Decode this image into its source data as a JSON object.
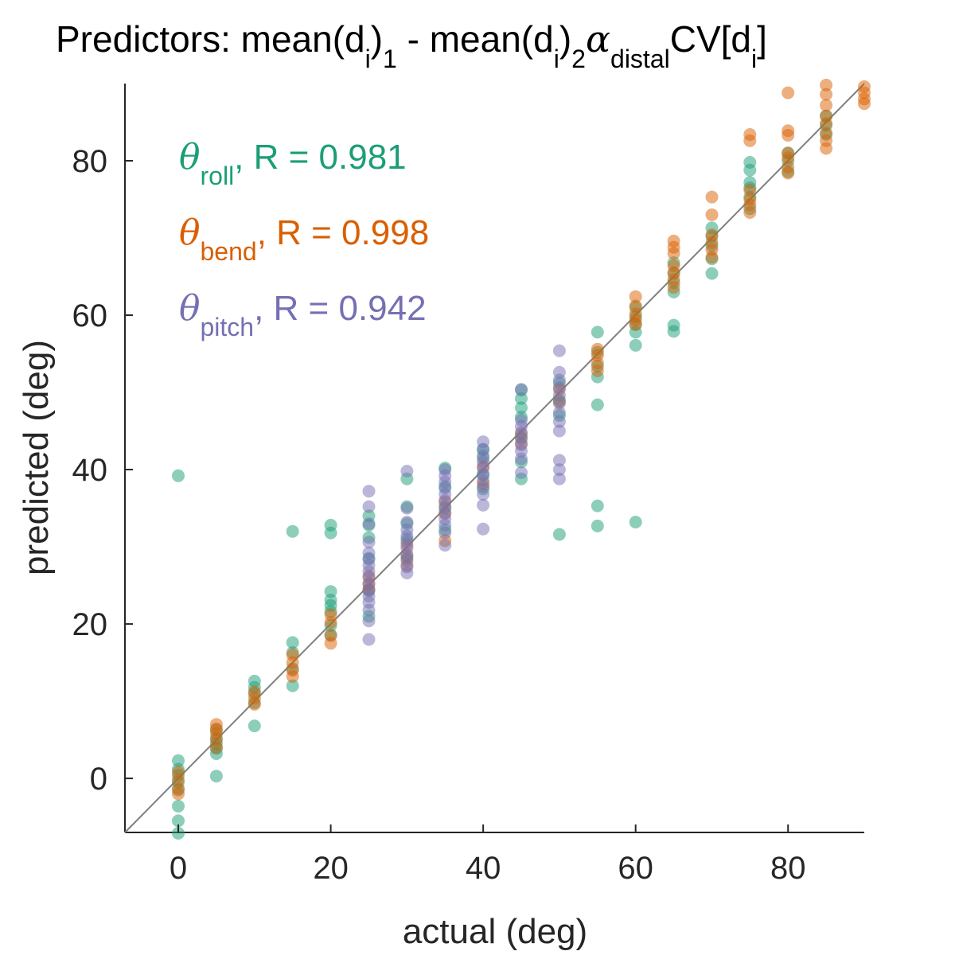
{
  "chart_data": {
    "type": "scatter",
    "title": {
      "prefix": "Predictors: mean(d",
      "sub_i_1": "i",
      "mid1": ")",
      "sub_1": "1",
      "mid2": " - mean(d",
      "sub_i_2": "i",
      "mid3": ")",
      "sub_2": "2",
      "alpha": "α",
      "sub_distal": "distal",
      "mid4": "CV[d",
      "sub_i_3": "i",
      "suffix": "]"
    },
    "xlabel": "actual (deg)",
    "ylabel": "predicted (deg)",
    "xlim": [
      -7,
      90
    ],
    "ylim": [
      -7,
      90
    ],
    "xticks": [
      0,
      20,
      40,
      60,
      80
    ],
    "yticks": [
      0,
      20,
      40,
      60,
      80
    ],
    "identity_line": true,
    "grid": false,
    "legend_placement": "top-left",
    "series": [
      {
        "name": "roll",
        "theta": "θ",
        "r_text": ", R = 0.981",
        "color": "#1b9e77",
        "points": [
          [
            0,
            2.3
          ],
          [
            0,
            1.2
          ],
          [
            0,
            0.4
          ],
          [
            0,
            -0.5
          ],
          [
            0,
            -1.5
          ],
          [
            0,
            -3.6
          ],
          [
            0,
            -5.5
          ],
          [
            0,
            -7.1
          ],
          [
            5,
            0.3
          ],
          [
            5,
            3.2
          ],
          [
            5,
            3.9
          ],
          [
            5,
            4.5
          ],
          [
            5,
            5.2
          ],
          [
            5,
            6.3
          ],
          [
            10,
            6.8
          ],
          [
            10,
            9.8
          ],
          [
            10,
            11.0
          ],
          [
            10,
            11.8
          ],
          [
            10,
            12.6
          ],
          [
            15,
            12.0
          ],
          [
            15,
            14.2
          ],
          [
            15,
            16.3
          ],
          [
            15,
            17.6
          ],
          [
            15,
            32.0
          ],
          [
            20,
            18.6
          ],
          [
            20,
            19.8
          ],
          [
            20,
            21.6
          ],
          [
            20,
            22.4
          ],
          [
            20,
            23.1
          ],
          [
            20,
            24.2
          ],
          [
            20,
            31.8
          ],
          [
            20,
            32.8
          ],
          [
            25,
            21.0
          ],
          [
            25,
            24.3
          ],
          [
            25,
            28.5
          ],
          [
            25,
            31.2
          ],
          [
            25,
            32.8
          ],
          [
            25,
            34.0
          ],
          [
            0,
            39.2
          ],
          [
            30,
            28.5
          ],
          [
            30,
            31.0
          ],
          [
            30,
            33.0
          ],
          [
            30,
            35.2
          ],
          [
            30,
            38.8
          ],
          [
            35,
            32.2
          ],
          [
            35,
            35.0
          ],
          [
            35,
            37.8
          ],
          [
            35,
            40.2
          ],
          [
            40,
            37.5
          ],
          [
            40,
            39.3
          ],
          [
            40,
            41.5
          ],
          [
            40,
            42.6
          ],
          [
            45,
            38.8
          ],
          [
            45,
            41.0
          ],
          [
            45,
            44.2
          ],
          [
            45,
            46.8
          ],
          [
            45,
            48.0
          ],
          [
            45,
            49.2
          ],
          [
            45,
            50.3
          ],
          [
            50,
            31.6
          ],
          [
            50,
            47.0
          ],
          [
            50,
            49.0
          ],
          [
            50,
            51.2
          ],
          [
            55,
            32.7
          ],
          [
            55,
            35.3
          ],
          [
            55,
            48.4
          ],
          [
            55,
            52.0
          ],
          [
            55,
            53.4
          ],
          [
            55,
            55.2
          ],
          [
            55,
            57.8
          ],
          [
            60,
            33.2
          ],
          [
            60,
            56.1
          ],
          [
            60,
            57.8
          ],
          [
            60,
            58.8
          ],
          [
            60,
            59.8
          ],
          [
            60,
            61.0
          ],
          [
            65,
            57.9
          ],
          [
            65,
            58.7
          ],
          [
            65,
            63.0
          ],
          [
            65,
            64.2
          ],
          [
            65,
            65.4
          ],
          [
            65,
            66.8
          ],
          [
            70,
            65.4
          ],
          [
            70,
            67.3
          ],
          [
            70,
            69.0
          ],
          [
            70,
            70.2
          ],
          [
            70,
            71.3
          ],
          [
            75,
            73.8
          ],
          [
            75,
            75.3
          ],
          [
            75,
            76.5
          ],
          [
            75,
            77.2
          ],
          [
            75,
            78.8
          ],
          [
            75,
            79.8
          ],
          [
            80,
            78.6
          ],
          [
            80,
            80.0
          ],
          [
            80,
            81.0
          ],
          [
            85,
            83.4
          ],
          [
            85,
            84.6
          ],
          [
            85,
            85.8
          ]
        ]
      },
      {
        "name": "bend",
        "theta": "θ",
        "r_text": ", R = 0.998",
        "color": "#d95f02",
        "points": [
          [
            0,
            0.8
          ],
          [
            0,
            -0.2
          ],
          [
            0,
            -1.3
          ],
          [
            0,
            -2.0
          ],
          [
            5,
            4.0
          ],
          [
            5,
            5.0
          ],
          [
            5,
            5.8
          ],
          [
            5,
            6.4
          ],
          [
            5,
            7.0
          ],
          [
            10,
            9.6
          ],
          [
            10,
            10.4
          ],
          [
            10,
            11.2
          ],
          [
            15,
            13.2
          ],
          [
            15,
            14.0
          ],
          [
            15,
            15.0
          ],
          [
            15,
            16.0
          ],
          [
            20,
            17.5
          ],
          [
            20,
            18.5
          ],
          [
            20,
            20.2
          ],
          [
            20,
            21.2
          ],
          [
            25,
            24.5
          ],
          [
            25,
            25.2
          ],
          [
            25,
            26.2
          ],
          [
            30,
            27.6
          ],
          [
            30,
            28.8
          ],
          [
            30,
            30.2
          ],
          [
            35,
            30.8
          ],
          [
            35,
            34.3
          ],
          [
            35,
            35.8
          ],
          [
            40,
            38.2
          ],
          [
            40,
            40.4
          ],
          [
            45,
            43.4
          ],
          [
            45,
            44.6
          ],
          [
            50,
            48.8
          ],
          [
            50,
            50.4
          ],
          [
            55,
            52.8
          ],
          [
            55,
            53.8
          ],
          [
            55,
            54.8
          ],
          [
            55,
            55.6
          ],
          [
            60,
            58.8
          ],
          [
            60,
            59.4
          ],
          [
            60,
            60.2
          ],
          [
            60,
            61.2
          ],
          [
            60,
            62.4
          ],
          [
            65,
            63.6
          ],
          [
            65,
            64.6
          ],
          [
            65,
            65.5
          ],
          [
            65,
            66.4
          ],
          [
            65,
            68.0
          ],
          [
            65,
            68.8
          ],
          [
            65,
            69.6
          ],
          [
            70,
            67.5
          ],
          [
            70,
            68.5
          ],
          [
            70,
            69.4
          ],
          [
            70,
            70.4
          ],
          [
            70,
            73.0
          ],
          [
            70,
            75.3
          ],
          [
            75,
            73.3
          ],
          [
            75,
            74.3
          ],
          [
            75,
            75.0
          ],
          [
            75,
            76.2
          ],
          [
            75,
            82.6
          ],
          [
            75,
            83.4
          ],
          [
            80,
            78.4
          ],
          [
            80,
            79.2
          ],
          [
            80,
            80.4
          ],
          [
            80,
            81.0
          ],
          [
            80,
            83.3
          ],
          [
            80,
            83.9
          ],
          [
            80,
            88.8
          ],
          [
            85,
            81.6
          ],
          [
            85,
            82.6
          ],
          [
            85,
            83.6
          ],
          [
            85,
            84.8
          ],
          [
            85,
            85.8
          ],
          [
            85,
            87.2
          ],
          [
            85,
            88.6
          ],
          [
            85,
            89.8
          ],
          [
            90,
            87.4
          ],
          [
            90,
            88.0
          ],
          [
            90,
            88.8
          ],
          [
            90,
            89.6
          ]
        ]
      },
      {
        "name": "pitch",
        "theta": "θ",
        "r_text": ", R = 0.942",
        "color": "#7570b3",
        "points": [
          [
            25,
            18.0
          ],
          [
            25,
            20.4
          ],
          [
            25,
            21.8
          ],
          [
            25,
            22.8
          ],
          [
            25,
            23.6
          ],
          [
            25,
            24.4
          ],
          [
            25,
            25.2
          ],
          [
            25,
            26.0
          ],
          [
            25,
            26.8
          ],
          [
            25,
            27.6
          ],
          [
            25,
            28.4
          ],
          [
            25,
            29.2
          ],
          [
            25,
            30.6
          ],
          [
            25,
            33.0
          ],
          [
            25,
            35.2
          ],
          [
            25,
            37.2
          ],
          [
            30,
            26.6
          ],
          [
            30,
            27.4
          ],
          [
            30,
            28.2
          ],
          [
            30,
            29.0
          ],
          [
            30,
            29.8
          ],
          [
            30,
            30.6
          ],
          [
            30,
            31.4
          ],
          [
            30,
            32.2
          ],
          [
            30,
            33.2
          ],
          [
            30,
            35.0
          ],
          [
            30,
            39.8
          ],
          [
            35,
            30.2
          ],
          [
            35,
            31.8
          ],
          [
            35,
            32.8
          ],
          [
            35,
            33.6
          ],
          [
            35,
            34.4
          ],
          [
            35,
            35.2
          ],
          [
            35,
            36.0
          ],
          [
            35,
            36.8
          ],
          [
            35,
            37.6
          ],
          [
            35,
            38.4
          ],
          [
            35,
            39.2
          ],
          [
            35,
            40.0
          ],
          [
            40,
            32.3
          ],
          [
            40,
            35.4
          ],
          [
            40,
            36.8
          ],
          [
            40,
            37.8
          ],
          [
            40,
            38.6
          ],
          [
            40,
            39.4
          ],
          [
            40,
            40.2
          ],
          [
            40,
            41.0
          ],
          [
            40,
            41.8
          ],
          [
            40,
            42.6
          ],
          [
            40,
            43.6
          ],
          [
            45,
            39.6
          ],
          [
            45,
            41.4
          ],
          [
            45,
            42.4
          ],
          [
            45,
            43.2
          ],
          [
            45,
            44.0
          ],
          [
            45,
            44.8
          ],
          [
            45,
            45.6
          ],
          [
            45,
            46.4
          ],
          [
            45,
            50.4
          ],
          [
            50,
            38.8
          ],
          [
            50,
            40.0
          ],
          [
            50,
            41.2
          ],
          [
            50,
            45.0
          ],
          [
            50,
            46.2
          ],
          [
            50,
            47.4
          ],
          [
            50,
            48.6
          ],
          [
            50,
            49.6
          ],
          [
            50,
            50.6
          ],
          [
            50,
            51.6
          ],
          [
            50,
            52.6
          ],
          [
            50,
            55.4
          ]
        ]
      }
    ]
  }
}
